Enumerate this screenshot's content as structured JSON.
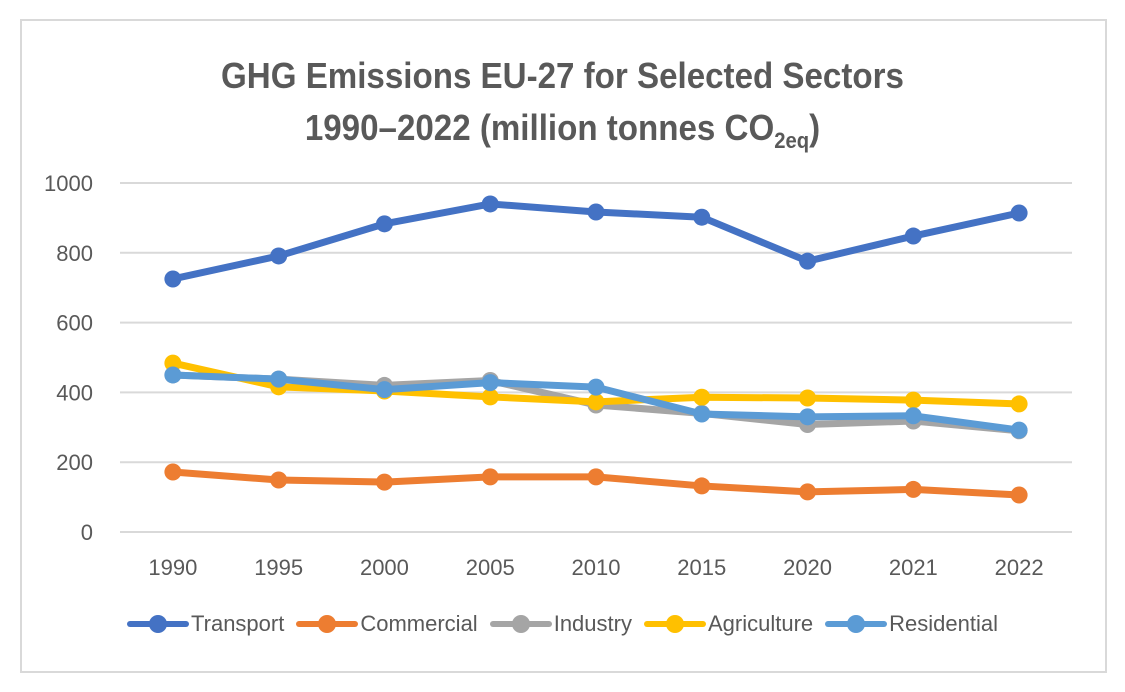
{
  "chart_data": {
    "type": "line",
    "title_line1": "GHG Emissions EU-27 for Selected Sectors",
    "title_line2_main": "1990–2022 (million tonnes CO",
    "title_line2_sub": "2eq",
    "title_line2_end": ")",
    "xlabel": "",
    "ylabel": "",
    "categories": [
      "1990",
      "1995",
      "2000",
      "2005",
      "2010",
      "2015",
      "2020",
      "2021",
      "2022"
    ],
    "ylim": [
      0,
      1000
    ],
    "yticks": [
      0,
      200,
      400,
      600,
      800,
      1000
    ],
    "grid": true,
    "legend_position": "bottom",
    "series": [
      {
        "name": "Transport",
        "color": "#4472c4",
        "values": [
          725,
          791,
          883,
          940,
          917,
          902,
          776,
          848,
          914
        ]
      },
      {
        "name": "Commercial",
        "color": "#ed7d31",
        "values": [
          172,
          149,
          143,
          158,
          158,
          132,
          115,
          122,
          106
        ]
      },
      {
        "name": "Industry",
        "color": "#a5a5a5",
        "values": [
          450,
          438,
          420,
          434,
          364,
          340,
          308,
          318,
          290
        ]
      },
      {
        "name": "Agriculture",
        "color": "#ffc000",
        "values": [
          484,
          416,
          404,
          387,
          373,
          386,
          384,
          378,
          367
        ]
      },
      {
        "name": "Residential",
        "color": "#5b9bd5",
        "values": [
          450,
          438,
          408,
          428,
          415,
          338,
          330,
          333,
          292
        ]
      }
    ]
  }
}
